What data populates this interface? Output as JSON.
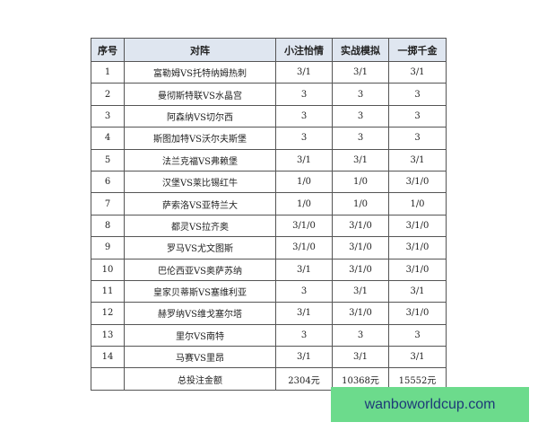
{
  "table": {
    "headers": [
      "序号",
      "对阵",
      "小注怡情",
      "实战模拟",
      "一掷千金"
    ],
    "rows": [
      [
        "1",
        "富勒姆VS托特纳姆热刺",
        "3/1",
        "3/1",
        "3/1"
      ],
      [
        "2",
        "曼彻斯特联VS水晶宫",
        "3",
        "3",
        "3"
      ],
      [
        "3",
        "阿森纳VS切尔西",
        "3",
        "3",
        "3"
      ],
      [
        "4",
        "斯图加特VS沃尔夫斯堡",
        "3",
        "3",
        "3"
      ],
      [
        "5",
        "法兰克福VS弗赖堡",
        "3/1",
        "3/1",
        "3/1"
      ],
      [
        "6",
        "汉堡VS莱比锡红牛",
        "1/0",
        "1/0",
        "3/1/0"
      ],
      [
        "7",
        "萨索洛VS亚特兰大",
        "1/0",
        "1/0",
        "1/0"
      ],
      [
        "8",
        "都灵VS拉齐奥",
        "3/1/0",
        "3/1/0",
        "3/1/0"
      ],
      [
        "9",
        "罗马VS尤文图斯",
        "3/1/0",
        "3/1/0",
        "3/1/0"
      ],
      [
        "10",
        "巴伦西亚VS奥萨苏纳",
        "3/1",
        "3/1/0",
        "3/1/0"
      ],
      [
        "11",
        "皇家贝蒂斯VS塞维利亚",
        "3",
        "3/1",
        "3/1"
      ],
      [
        "12",
        "赫罗纳VS维戈塞尔塔",
        "3/1",
        "3/1/0",
        "3/1/0"
      ],
      [
        "13",
        "里尔VS南特",
        "3",
        "3",
        "3"
      ],
      [
        "14",
        "马赛VS里昂",
        "3/1",
        "3/1",
        "3/1"
      ],
      [
        "",
        "总投注金额",
        "2304元",
        "10368元",
        "15552元"
      ]
    ]
  },
  "watermark": {
    "text": "wanboworldcup.com",
    "bg": "#6cdb8c",
    "color": "#1e3a78"
  }
}
